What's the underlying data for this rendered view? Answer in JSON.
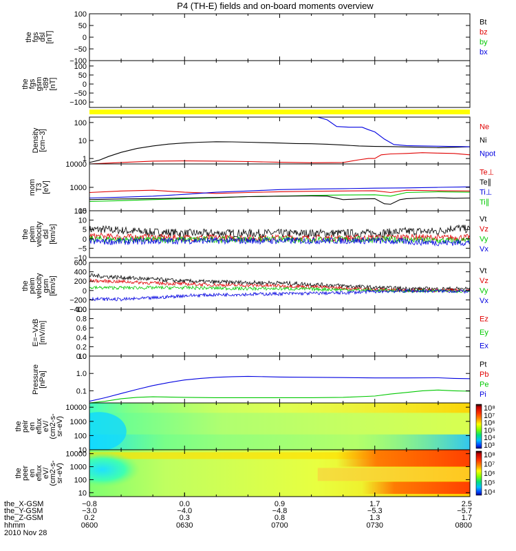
{
  "title": "P4 (TH-E) fields and on-board moments overview",
  "date_label": "2010 Nov 28",
  "colors": {
    "black": "#000000",
    "red": "#e00000",
    "green": "#00c800",
    "blue": "#0000e0",
    "yellow": "#ffff00"
  },
  "ephemeris": {
    "labels": [
      "the_X-GSM",
      "the_Y-GSM",
      "the_Z-GSM",
      "hhmm"
    ],
    "columns": [
      {
        "x": 0,
        "values": [
          "-0.8",
          "-3.0",
          "0.2",
          "0600"
        ]
      },
      {
        "x": 30,
        "values": [
          "0.0",
          "-4.0",
          "0.3",
          "0630"
        ]
      },
      {
        "x": 60,
        "values": [
          "0.9",
          "-4.8",
          "0.8",
          "0700"
        ]
      },
      {
        "x": 90,
        "values": [
          "1.7",
          "-5.3",
          "1.3",
          "0730"
        ]
      },
      {
        "x": 120,
        "values": [
          "2.5",
          "-5.7",
          "1.7",
          "0800"
        ]
      }
    ]
  },
  "chart_data": [
    {
      "id": "fgs-dsl",
      "type": "line",
      "ylabel": [
        "the",
        "fgs",
        "dsl",
        "[nT]"
      ],
      "ylim": [
        -100,
        100
      ],
      "yscale": "linear",
      "yticks": [
        100,
        50,
        0,
        -50,
        -100
      ],
      "yticklabels": [
        "100",
        "50",
        "0",
        "−50",
        "−100"
      ],
      "legend": [
        {
          "label": "Bt",
          "color": "#000000"
        },
        {
          "label": "bz",
          "color": "#e00000"
        },
        {
          "label": "by",
          "color": "#00c800"
        },
        {
          "label": "bx",
          "color": "#0000e0"
        }
      ],
      "series": []
    },
    {
      "id": "fgs-gsm",
      "type": "line",
      "ylabel": [
        "the",
        "fgs",
        "gsm",
        "-t89",
        "[nT]"
      ],
      "ylim": [
        -130,
        130
      ],
      "yscale": "linear",
      "yticks": [
        100,
        50,
        0,
        -50,
        -100
      ],
      "yticklabels": [
        "100",
        "50",
        "0",
        "−50",
        "−100"
      ],
      "legend": [],
      "series": []
    },
    {
      "id": "mode-bar",
      "type": "bar",
      "band": {
        "x": [
          0,
          120
        ],
        "color": "#ffff00"
      }
    },
    {
      "id": "density",
      "type": "line",
      "ylabel": [
        "Density",
        "[cm−3]"
      ],
      "ylim": [
        0.5,
        200
      ],
      "yscale": "log",
      "yticks": [
        100,
        10,
        1
      ],
      "yticklabels": [
        "100",
        "10",
        "1"
      ],
      "legend": [
        {
          "label": "Ne",
          "color": "#e00000"
        },
        {
          "label": "Ni",
          "color": "#000000"
        },
        {
          "label": "Npot",
          "color": "#0000e0"
        }
      ],
      "series": [
        {
          "color": "#000000",
          "x": [
            0,
            3,
            6,
            10,
            15,
            20,
            25,
            30,
            35,
            40,
            45,
            50,
            55,
            60,
            65,
            70,
            75,
            80,
            85,
            90,
            95,
            100,
            105,
            110,
            115,
            120
          ],
          "y": [
            0.6,
            0.8,
            1.3,
            2.2,
            3.6,
            5.0,
            6.3,
            7.3,
            8.0,
            8.5,
            8.4,
            8.0,
            7.6,
            7.2,
            6.8,
            6.6,
            6.2,
            5.6,
            5.0,
            4.7,
            4.6,
            4.4,
            4.2,
            4.0,
            4.2,
            4.5
          ]
        },
        {
          "color": "#e00000",
          "x": [
            0,
            10,
            20,
            30,
            40,
            50,
            60,
            70,
            80,
            85,
            88,
            90,
            92,
            95,
            100,
            105,
            110,
            115,
            120
          ],
          "y": [
            0.5,
            0.6,
            0.72,
            0.74,
            0.72,
            0.68,
            0.62,
            0.58,
            0.6,
            0.85,
            1.0,
            1.0,
            1.6,
            1.8,
            1.9,
            2.1,
            2.0,
            1.9,
            1.6
          ]
        },
        {
          "color": "#0000e0",
          "x": [
            72,
            75,
            78,
            82,
            86,
            88,
            90,
            93,
            96,
            100,
            110,
            120
          ],
          "y": [
            200,
            140,
            60,
            55,
            55,
            40,
            30,
            12,
            6,
            5.2,
            4.8,
            4.5
          ]
        }
      ]
    },
    {
      "id": "temperature",
      "type": "line",
      "ylabel": [
        "mom",
        "T3",
        "[eV]"
      ],
      "ylim": [
        100,
        10000
      ],
      "yscale": "log",
      "yticks": [
        10000,
        1000,
        100
      ],
      "yticklabels": [
        "10000",
        "1000",
        "100"
      ],
      "legend": [
        {
          "label": "Te⊥",
          "color": "#e00000"
        },
        {
          "label": "Te∥",
          "color": "#000000"
        },
        {
          "label": "Ti⊥",
          "color": "#0000e0"
        },
        {
          "label": "Ti∥",
          "color": "#00c800"
        }
      ],
      "series": [
        {
          "color": "#e00000",
          "x": [
            0,
            10,
            20,
            30,
            40,
            50,
            60,
            70,
            80,
            90,
            95,
            100,
            110,
            120
          ],
          "y": [
            600,
            700,
            750,
            620,
            550,
            600,
            650,
            680,
            700,
            720,
            600,
            750,
            720,
            700
          ]
        },
        {
          "color": "#0000e0",
          "x": [
            0,
            10,
            20,
            30,
            40,
            50,
            60,
            70,
            80,
            90,
            100,
            110,
            120
          ],
          "y": [
            350,
            380,
            420,
            500,
            620,
            700,
            800,
            850,
            880,
            920,
            950,
            1000,
            1050
          ]
        },
        {
          "color": "#00c800",
          "x": [
            0,
            10,
            20,
            30,
            40,
            50,
            60,
            70,
            80,
            90,
            95,
            100,
            110,
            120
          ],
          "y": [
            250,
            270,
            300,
            330,
            360,
            400,
            420,
            450,
            470,
            480,
            420,
            600,
            650,
            620
          ]
        },
        {
          "color": "#000000",
          "x": [
            0,
            10,
            20,
            30,
            40,
            50,
            60,
            70,
            75,
            80,
            85,
            90,
            93,
            95,
            98,
            100,
            105,
            110,
            115,
            120
          ],
          "y": [
            300,
            320,
            330,
            350,
            370,
            400,
            420,
            430,
            420,
            300,
            320,
            330,
            200,
            190,
            300,
            330,
            350,
            360,
            340,
            350
          ]
        }
      ]
    },
    {
      "id": "velocity-dsl",
      "type": "line",
      "ylabel": [
        "the",
        "peim",
        "velocity",
        "dsl",
        "[km/s]"
      ],
      "ylim": [
        -10,
        15
      ],
      "yscale": "linear",
      "yticks": [
        15,
        10,
        5,
        0,
        -5,
        -10
      ],
      "yticklabels": [
        "15",
        "10",
        "5",
        "0",
        "−5",
        "−10"
      ],
      "legend": [
        {
          "label": "Vt",
          "color": "#000000"
        },
        {
          "label": "Vz",
          "color": "#e00000"
        },
        {
          "label": "Vy",
          "color": "#00c800"
        },
        {
          "label": "Vx",
          "color": "#0000e0"
        }
      ],
      "series": [
        {
          "color": "#000000",
          "x": [
            0,
            5,
            10,
            15,
            20,
            25,
            30,
            40,
            50,
            60,
            70,
            80,
            90,
            100,
            110,
            115,
            120
          ],
          "y": [
            5,
            5,
            4.5,
            4,
            3.5,
            3.5,
            3,
            3,
            3,
            3,
            3,
            3,
            3,
            4,
            4,
            6,
            5
          ]
        },
        {
          "color": "#e00000",
          "x": [
            0,
            10,
            20,
            30,
            40,
            60,
            80,
            90,
            100,
            110,
            120
          ],
          "y": [
            1.5,
            1,
            0.8,
            0.6,
            0.5,
            0.5,
            0.4,
            0.5,
            1,
            0.5,
            0.8
          ]
        },
        {
          "color": "#00c800",
          "x": [
            0,
            10,
            20,
            30,
            40,
            60,
            80,
            90,
            100,
            110,
            120
          ],
          "y": [
            0,
            -0.5,
            -0.5,
            -0.4,
            -0.3,
            -0.4,
            -0.4,
            -0.3,
            -0.5,
            -1,
            -1
          ]
        },
        {
          "color": "#0000e0",
          "x": [
            0,
            10,
            20,
            30,
            40,
            60,
            80,
            90,
            100,
            110,
            120
          ],
          "y": [
            -1.5,
            -1.5,
            -1.2,
            -1,
            -1,
            -1,
            -1,
            -1,
            -1.5,
            -2,
            -2
          ]
        }
      ]
    },
    {
      "id": "velocity-gsm",
      "type": "line",
      "ylabel": [
        "the",
        "peim",
        "velocity",
        "gsm",
        "[km/s]"
      ],
      "ylim": [
        -400,
        600
      ],
      "yscale": "linear",
      "yticks": [
        600,
        400,
        200,
        0,
        -200,
        -400
      ],
      "yticklabels": [
        "600",
        "400",
        "200",
        "0",
        "−200",
        "−400"
      ],
      "legend": [
        {
          "label": "Vt",
          "color": "#000000"
        },
        {
          "label": "Vz",
          "color": "#e00000"
        },
        {
          "label": "Vy",
          "color": "#00c800"
        },
        {
          "label": "Vx",
          "color": "#0000e0"
        }
      ],
      "series": [
        {
          "color": "#000000",
          "x": [
            0,
            10,
            20,
            30,
            40,
            50,
            60,
            70,
            80,
            90,
            100,
            110,
            120
          ],
          "y": [
            320,
            280,
            240,
            200,
            180,
            170,
            160,
            130,
            100,
            60,
            40,
            30,
            40
          ]
        },
        {
          "color": "#e00000",
          "x": [
            0,
            10,
            20,
            30,
            40,
            50,
            60,
            70,
            80,
            90,
            100,
            110,
            120
          ],
          "y": [
            210,
            190,
            160,
            140,
            120,
            110,
            100,
            80,
            50,
            20,
            10,
            0,
            10
          ]
        },
        {
          "color": "#00c800",
          "x": [
            0,
            10,
            20,
            30,
            40,
            50,
            60,
            70,
            80,
            90,
            100,
            110,
            120
          ],
          "y": [
            60,
            60,
            60,
            60,
            50,
            40,
            40,
            30,
            20,
            0,
            -10,
            -10,
            -10
          ]
        },
        {
          "color": "#0000e0",
          "x": [
            0,
            10,
            20,
            30,
            40,
            50,
            60,
            70,
            80,
            90,
            100,
            110,
            120
          ],
          "y": [
            -180,
            -190,
            -160,
            -110,
            -90,
            -80,
            -70,
            -60,
            -50,
            -20,
            -10,
            -10,
            -20
          ]
        }
      ]
    },
    {
      "id": "efield",
      "type": "line",
      "ylabel": [
        "E=−VxB",
        "[mV/m]"
      ],
      "ylim": [
        0,
        1
      ],
      "yscale": "linear",
      "yticks": [
        1.0,
        0.8,
        0.6,
        0.4,
        0.2,
        0.0
      ],
      "yticklabels": [
        "1.0",
        "0.8",
        "0.6",
        "0.4",
        "0.2",
        "0.0"
      ],
      "legend": [
        {
          "label": "Ez",
          "color": "#e00000"
        },
        {
          "label": "Ey",
          "color": "#00c800"
        },
        {
          "label": "Ex",
          "color": "#0000e0"
        }
      ],
      "series": []
    },
    {
      "id": "pressure",
      "type": "line",
      "ylabel": [
        "Pressure",
        "[nPa]"
      ],
      "ylim": [
        0.02,
        10
      ],
      "yscale": "log",
      "yticks": [
        10,
        1.0,
        0.1
      ],
      "yticklabels": [
        "10",
        "1.0",
        "0.1"
      ],
      "legend": [
        {
          "label": "Pt",
          "color": "#000000"
        },
        {
          "label": "Pb",
          "color": "#e00000"
        },
        {
          "label": "Pe",
          "color": "#00c800"
        },
        {
          "label": "Pi",
          "color": "#0000e0"
        }
      ],
      "series": [
        {
          "color": "#0000e0",
          "x": [
            0,
            5,
            10,
            15,
            20,
            25,
            30,
            35,
            40,
            45,
            50,
            60,
            70,
            80,
            90,
            100,
            110,
            115,
            120
          ],
          "y": [
            0.025,
            0.04,
            0.07,
            0.12,
            0.2,
            0.3,
            0.42,
            0.52,
            0.6,
            0.65,
            0.68,
            0.62,
            0.6,
            0.58,
            0.55,
            0.55,
            0.56,
            0.52,
            0.5
          ]
        },
        {
          "color": "#00c800",
          "x": [
            0,
            5,
            10,
            15,
            20,
            30,
            40,
            50,
            60,
            70,
            80,
            90,
            95,
            100,
            105,
            110,
            115,
            120
          ],
          "y": [
            0.02,
            0.025,
            0.035,
            0.042,
            0.045,
            0.042,
            0.04,
            0.04,
            0.04,
            0.04,
            0.042,
            0.05,
            0.065,
            0.08,
            0.1,
            0.11,
            0.1,
            0.095
          ]
        }
      ]
    },
    {
      "id": "ion-spectrogram",
      "type": "heatmap",
      "ylabel": [
        "the",
        "peir",
        "en",
        "eflux",
        "eV/",
        "(cm2-s-",
        "sr-eV)"
      ],
      "ylim": [
        10,
        20000
      ],
      "yscale": "log",
      "yticks": [
        10000,
        1000,
        100,
        10
      ],
      "yticklabels": [
        "10000",
        "1000",
        "100",
        "10"
      ],
      "colorbar": {
        "labels": [
          "10⁸",
          "10⁷",
          "10⁶",
          "10⁵",
          "10⁴",
          "10³"
        ]
      }
    },
    {
      "id": "electron-spectrogram",
      "type": "heatmap",
      "ylabel": [
        "the",
        "peer",
        "en",
        "eflux",
        "eV/",
        "(cm2-s-",
        "sr-eV)"
      ],
      "ylim": [
        5,
        20000
      ],
      "yscale": "log",
      "yticks": [
        10000,
        1000,
        100,
        10
      ],
      "yticklabels": [
        "10000",
        "1000",
        "100",
        "10"
      ],
      "colorbar": {
        "labels": [
          "10⁸",
          "10⁷",
          "10⁶",
          "10⁵",
          "10⁴"
        ]
      }
    }
  ]
}
